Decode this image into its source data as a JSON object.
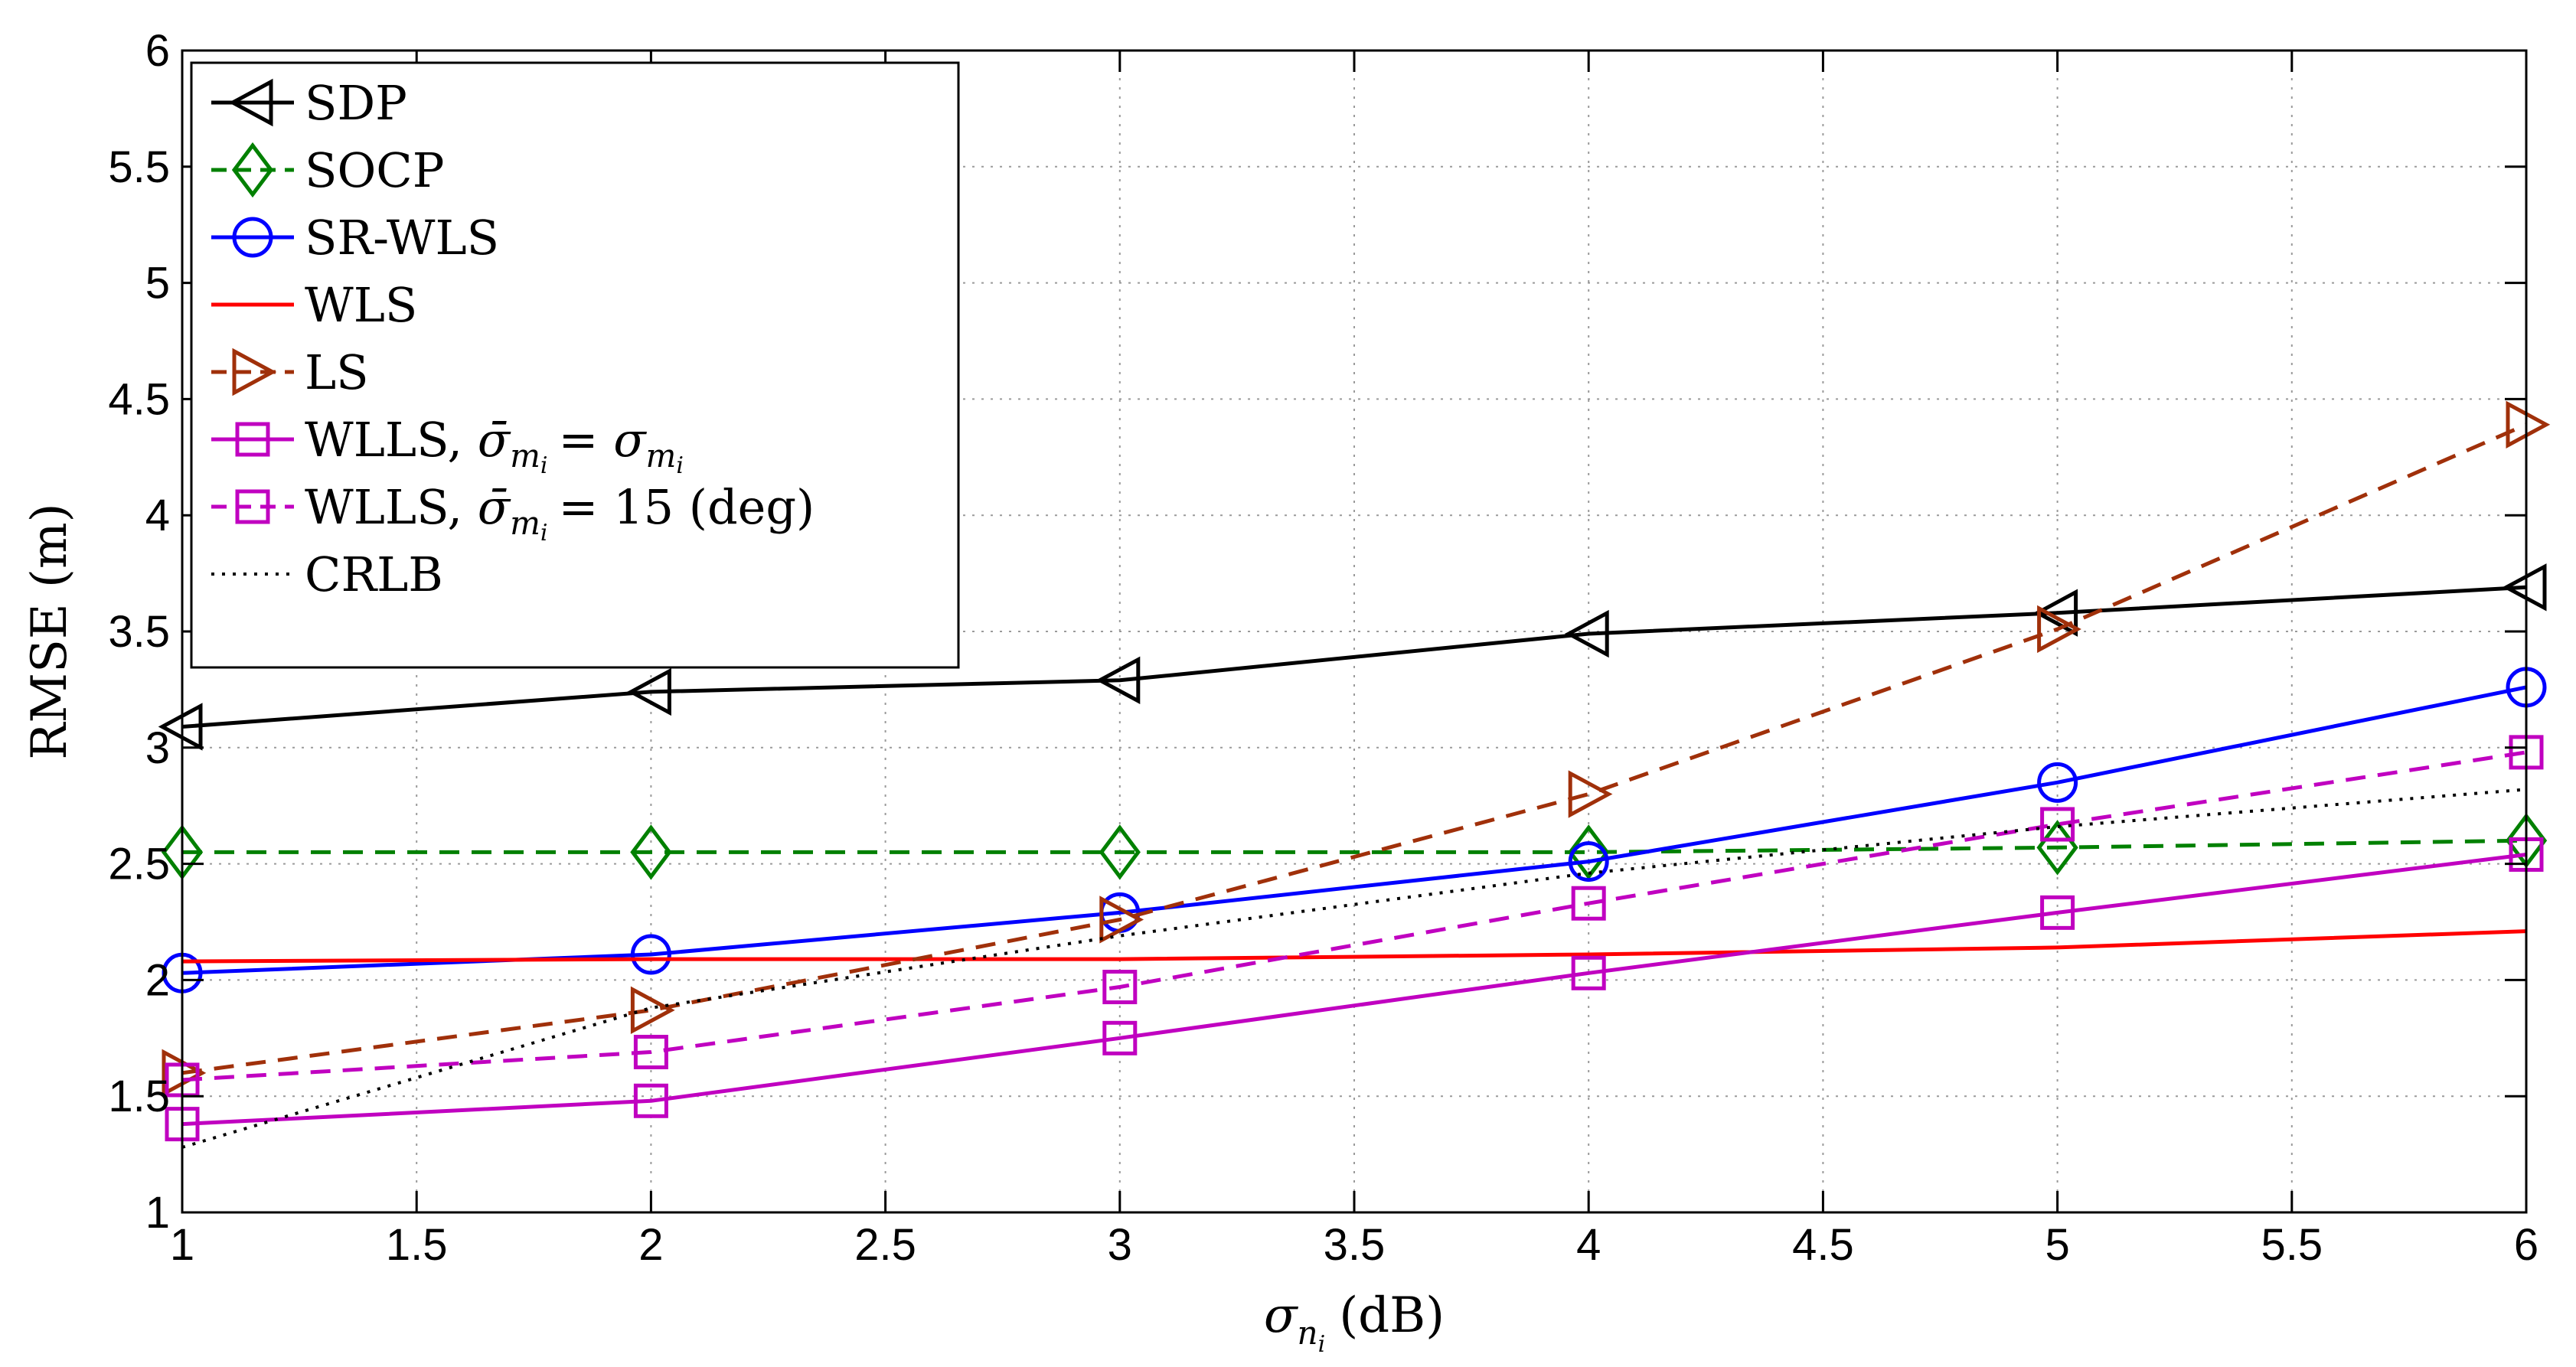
{
  "chart_data": {
    "type": "line",
    "title": "",
    "xlabel": "σ",
    "xlabel_sub": "n",
    "xlabel_subsub": "i",
    "xlabel_unit": "(dB)",
    "ylabel": "RMSE (m)",
    "xlim": [
      1,
      6
    ],
    "ylim": [
      1,
      6
    ],
    "xticks": [
      "1",
      "1.5",
      "2",
      "2.5",
      "3",
      "3.5",
      "4",
      "4.5",
      "5",
      "5.5",
      "6"
    ],
    "yticks": [
      "1",
      "1.5",
      "2",
      "2.5",
      "3",
      "3.5",
      "4",
      "4.5",
      "5",
      "5.5",
      "6"
    ],
    "grid": true,
    "legend_position": "top-left",
    "x": [
      1,
      2,
      3,
      4,
      5,
      6
    ],
    "series": [
      {
        "name": "SDP",
        "color": "#000000",
        "dash": "solid",
        "marker": "triangle-left",
        "values": [
          3.09,
          3.24,
          3.29,
          3.49,
          3.58,
          3.69
        ]
      },
      {
        "name": "SOCP",
        "color": "#008000",
        "dash": "dashed",
        "marker": "diamond",
        "values": [
          2.55,
          2.55,
          2.55,
          2.55,
          2.57,
          2.6
        ]
      },
      {
        "name": "SR-WLS",
        "color": "#0000ff",
        "dash": "solid",
        "marker": "circle",
        "values": [
          2.03,
          2.11,
          2.29,
          2.51,
          2.85,
          3.26
        ]
      },
      {
        "name": "WLS",
        "color": "#ff0000",
        "dash": "solid",
        "marker": "none",
        "values": [
          2.08,
          2.09,
          2.09,
          2.11,
          2.14,
          2.21
        ]
      },
      {
        "name": "LS",
        "color": "#a0300a",
        "dash": "dashed",
        "marker": "triangle-right",
        "values": [
          1.6,
          1.87,
          2.26,
          2.8,
          3.51,
          4.39
        ]
      },
      {
        "name": "WLLS, σ̄mi = σmi",
        "label_prefix": "WLLS,",
        "label_math": "σ̄mi = σmi",
        "color": "#c000c0",
        "dash": "solid",
        "marker": "square",
        "values": [
          1.38,
          1.48,
          1.75,
          2.03,
          2.29,
          2.54
        ]
      },
      {
        "name": "WLLS, σ̄mi = 15 (deg)",
        "label_prefix": "WLLS,",
        "label_math": "σ̄mi = 15 (deg)",
        "color": "#c000c0",
        "dash": "dashed",
        "marker": "square",
        "values": [
          1.57,
          1.69,
          1.97,
          2.33,
          2.67,
          2.98
        ]
      },
      {
        "name": "CRLB",
        "color": "#000000",
        "dash": "dotted",
        "marker": "none",
        "values": [
          1.28,
          1.88,
          2.19,
          2.46,
          2.66,
          2.82
        ]
      }
    ]
  }
}
